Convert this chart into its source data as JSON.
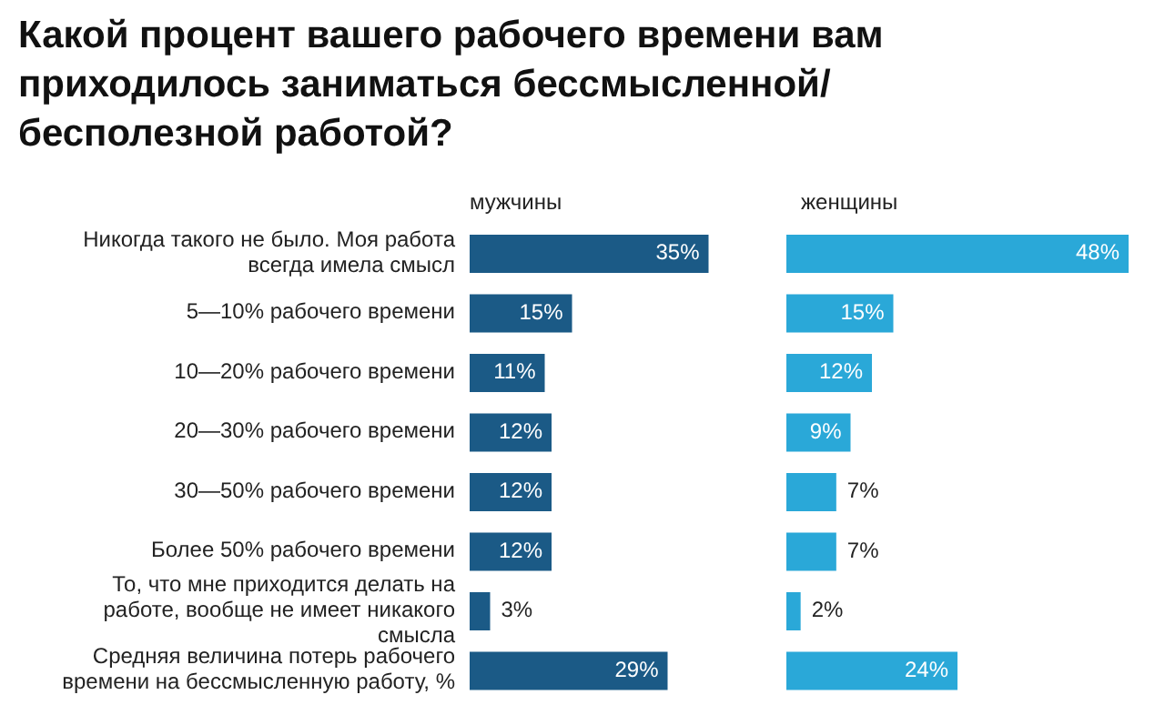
{
  "chart_data": [
    {
      "type": "bar",
      "orientation": "horizontal",
      "title": "Какой процент вашего рабочего времени вам приходилось заниматься бессмысленной/ бесполезной работой?",
      "subtitle": "мужчины",
      "categories": [
        "Никогда такого не было. Моя работа всегда имела смысл",
        "5—10% рабочего времени",
        "10—20% рабочего времени",
        "20—30% рабочего времени",
        "30—50% рабочего времени",
        "Более 50% рабочего времени",
        "То, что мне приходится делать на работе, вообще не имеет никакого смысла",
        "Средняя величина потерь рабочего времени на бессмысленную работу, %"
      ],
      "values": [
        35,
        15,
        11,
        12,
        12,
        12,
        3,
        29
      ],
      "value_labels": [
        "35%",
        "15%",
        "11%",
        "12%",
        "12%",
        "12%",
        "3%",
        "29%"
      ],
      "color": "#1b5a86"
    },
    {
      "type": "bar",
      "orientation": "horizontal",
      "subtitle": "женщины",
      "categories": [
        null,
        null,
        null,
        null,
        null,
        null,
        null,
        null
      ],
      "values": [
        48,
        15,
        12,
        9,
        7,
        7,
        2,
        24
      ],
      "value_labels": [
        "48%",
        "15%",
        "12%",
        "9%",
        "7%",
        "7%",
        "2%",
        "24%"
      ],
      "color": "#2aa8d8",
      "tick_labels": false
    }
  ]
}
